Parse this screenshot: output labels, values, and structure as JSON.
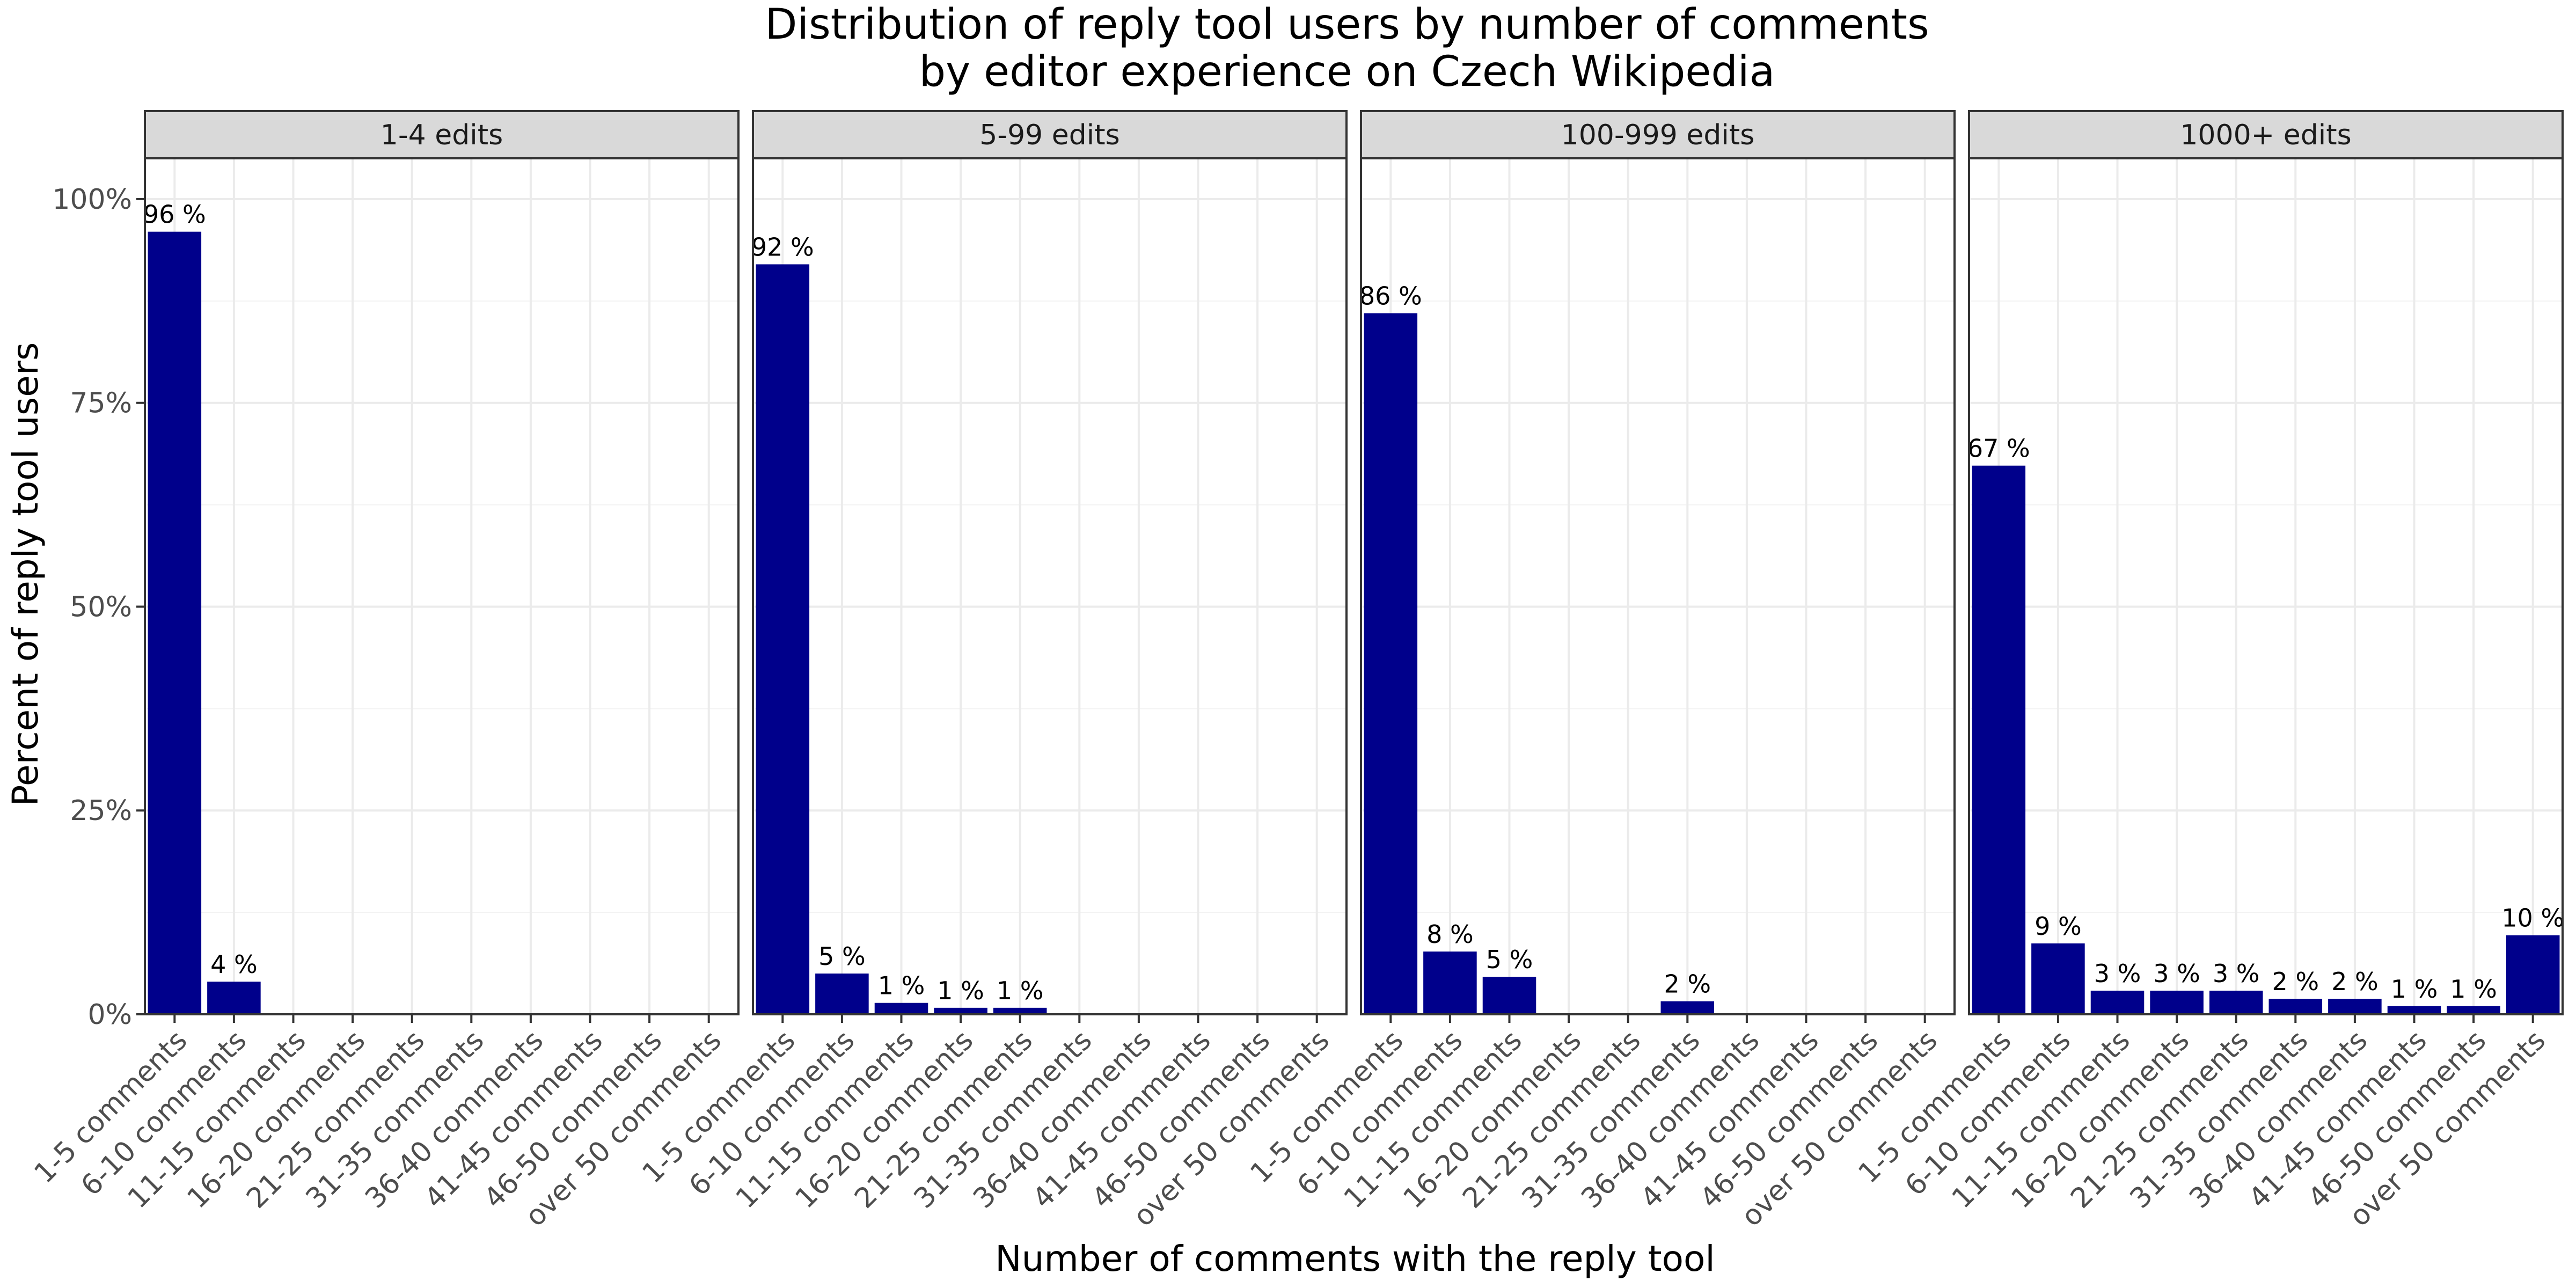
{
  "chart_data": {
    "type": "bar",
    "title": "Distribution of reply tool users by number of comments",
    "subtitle": "by editor experience on Czech Wikipedia",
    "xlabel": "Number of comments with the reply tool",
    "ylabel": "Percent of reply tool users",
    "ylim": [
      0,
      1.05
    ],
    "y_ticks": [
      0,
      0.25,
      0.5,
      0.75,
      1.0
    ],
    "y_tick_labels": [
      "0%",
      "25%",
      "50%",
      "75%",
      "100%"
    ],
    "grid": true,
    "legend": "none",
    "bar_color": "#00008B",
    "categories": [
      "1-5 comments",
      "6-10 comments",
      "11-15 comments",
      "16-20 comments",
      "21-25 comments",
      "31-35 comments",
      "36-40 comments",
      "41-45 comments",
      "46-50 comments",
      "over 50 comments"
    ],
    "facets": [
      {
        "name": "1-4 edits",
        "values": [
          0.96,
          0.04,
          null,
          null,
          null,
          null,
          null,
          null,
          null,
          null
        ],
        "labels": [
          "96 %",
          "4 %",
          null,
          null,
          null,
          null,
          null,
          null,
          null,
          null
        ]
      },
      {
        "name": "5-99 edits",
        "values": [
          0.92,
          0.05,
          0.014,
          0.008,
          0.008,
          null,
          null,
          null,
          null,
          null
        ],
        "labels": [
          "92 %",
          "5 %",
          "1 %",
          "1 %",
          "1 %",
          null,
          null,
          null,
          null,
          null
        ]
      },
      {
        "name": "100-999 edits",
        "values": [
          0.86,
          0.077,
          0.046,
          null,
          null,
          0.016,
          null,
          null,
          null,
          null
        ],
        "labels": [
          "86 %",
          "8 %",
          "5 %",
          null,
          null,
          "2 %",
          null,
          null,
          null,
          null
        ]
      },
      {
        "name": "1000+ edits",
        "values": [
          0.673,
          0.087,
          0.029,
          0.029,
          0.029,
          0.019,
          0.019,
          0.01,
          0.01,
          0.097
        ],
        "labels": [
          "67 %",
          "9 %",
          "3 %",
          "3 %",
          "3 %",
          "2 %",
          "2 %",
          "1 %",
          "1 %",
          "10 %"
        ]
      }
    ]
  }
}
